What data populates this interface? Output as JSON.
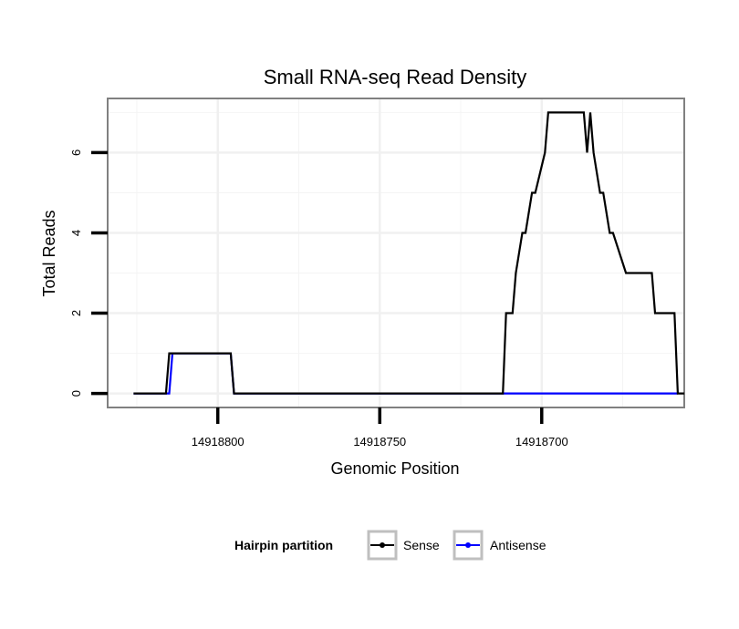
{
  "chart_data": {
    "type": "line",
    "title": "Small RNA-seq Read Density",
    "xlabel": "Genomic Position",
    "ylabel": "Total Reads",
    "x_reversed": true,
    "xlim": [
      14918834,
      14918656
    ],
    "ylim": [
      -0.35,
      7.35
    ],
    "x_ticks": [
      14918800,
      14918750,
      14918700
    ],
    "x_tick_labels": [
      "14918800",
      "14918750",
      "14918700"
    ],
    "y_ticks": [
      0,
      2,
      4,
      6
    ],
    "y_tick_labels": [
      "0",
      "2",
      "4",
      "6"
    ],
    "grid": true,
    "legend": {
      "title": "Hairpin partition",
      "position": "bottom",
      "entries": [
        "Sense",
        "Antisense"
      ]
    },
    "colors": {
      "Sense": "#000000",
      "Antisense": "#0000ff"
    },
    "series": [
      {
        "name": "Sense",
        "x": [
          14918826,
          14918816,
          14918815,
          14918796,
          14918795,
          14918712,
          14918711,
          14918709,
          14918708,
          14918706,
          14918705,
          14918703,
          14918702,
          14918699,
          14918698,
          14918687,
          14918686,
          14918685,
          14918684,
          14918682,
          14918681,
          14918679,
          14918678,
          14918674,
          14918673,
          14918666,
          14918665,
          14918659,
          14918658,
          14918656
        ],
        "y": [
          0,
          0,
          1,
          1,
          0,
          0,
          2,
          2,
          3,
          4,
          4,
          5,
          5,
          6,
          7,
          7,
          6,
          7,
          6,
          5,
          5,
          4,
          4,
          3,
          3,
          3,
          2,
          2,
          0,
          0
        ]
      },
      {
        "name": "Antisense",
        "x": [
          14918826,
          14918815,
          14918814,
          14918796,
          14918795,
          14918658
        ],
        "y": [
          0,
          0,
          1,
          1,
          0,
          0
        ]
      }
    ]
  }
}
